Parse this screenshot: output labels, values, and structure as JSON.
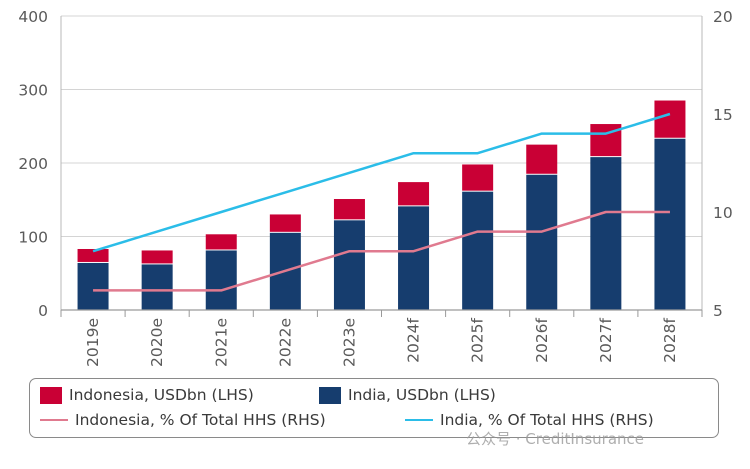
{
  "chart_data": {
    "type": "bar",
    "categories": [
      "2019e",
      "2020e",
      "2021e",
      "2022e",
      "2023e",
      "2024f",
      "2025f",
      "2026f",
      "2027f",
      "2028f"
    ],
    "series": [
      {
        "name": "India, USDbn (LHS)",
        "kind": "stacked-bar",
        "axis": "left",
        "color": "#163d6e",
        "values": [
          64,
          62,
          81,
          105,
          122,
          141,
          161,
          184,
          208,
          233
        ]
      },
      {
        "name": "Indonesia, USDbn (LHS)",
        "kind": "stacked-bar",
        "axis": "left",
        "color": "#c90035",
        "values": [
          19,
          19,
          22,
          25,
          29,
          33,
          37,
          41,
          45,
          52
        ]
      },
      {
        "name": "Indonesia, % Of Total HHS (RHS)",
        "kind": "line",
        "axis": "right",
        "color": "#e07a8f",
        "values": [
          6,
          6,
          6,
          7,
          8,
          8,
          9,
          9,
          10,
          10
        ]
      },
      {
        "name": "India, % Of Total HHS (RHS)",
        "kind": "line",
        "axis": "right",
        "color": "#2bbde8",
        "values": [
          8,
          9,
          10,
          11,
          12,
          13,
          13,
          14,
          14,
          15
        ]
      }
    ],
    "y_left": {
      "min": 0,
      "max": 400,
      "ticks": [
        0,
        100,
        200,
        300,
        400
      ]
    },
    "y_right": {
      "min": 5,
      "max": 20,
      "ticks": [
        5,
        10,
        15,
        20
      ]
    },
    "grid": "horizontal",
    "legend_position": "bottom"
  },
  "legend": {
    "indonesia_bar": "Indonesia, USDbn (LHS)",
    "india_bar": "India, USDbn (LHS)",
    "indonesia_line": "Indonesia, % Of Total HHS (RHS)",
    "india_line": "India, % Of Total HHS (RHS)"
  },
  "watermark": "公众号 · CreditInsurance"
}
